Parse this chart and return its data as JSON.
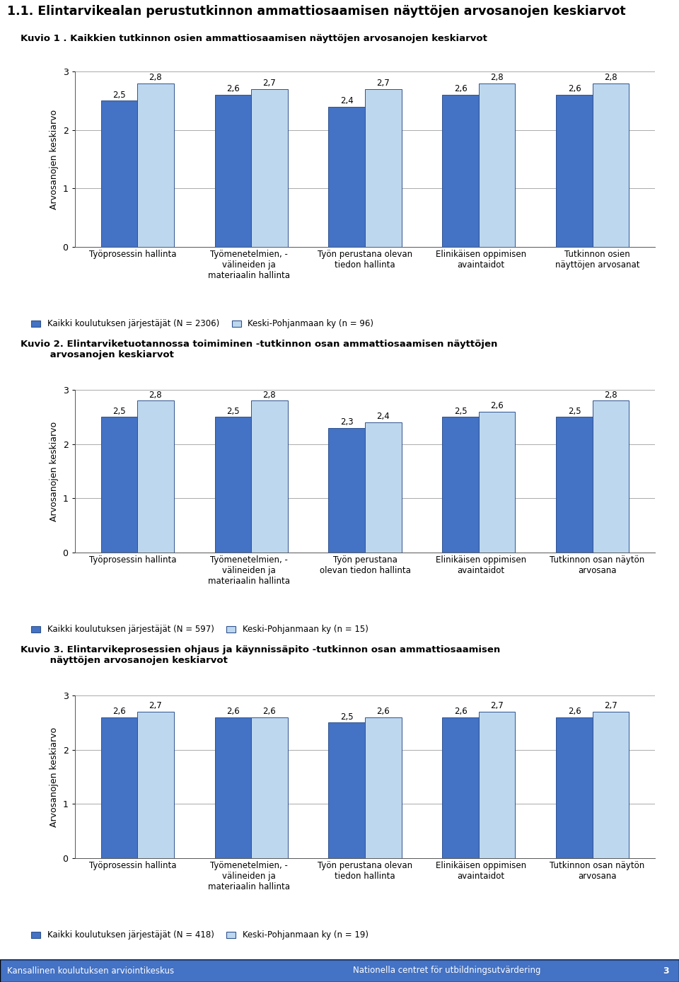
{
  "title": "1.1. Elintarvikealan perustutkinnon ammattiosaamisen näyttöjen arvosanojen keskiarvot",
  "title_fontsize": 12.5,
  "bar_color_dark": "#4472C4",
  "bar_color_light": "#BDD7EE",
  "bar_edge_color": "#2F528F",
  "fig_bg": "#FFFFFF",
  "charts": [
    {
      "title_line1": "Kuvio 1 . Kaikkien tutkinnon osien ammattiosaamisen näyttöjen arvosanojen keskiarvot",
      "title_line2": null,
      "categories": [
        "Työprosessin hallinta",
        "Työmenetelmien, -\nvälineiden ja\nmateriaalin hallinta",
        "Työn perustana olevan\ntiedon hallinta",
        "Elinikäisen oppimisen\navaintaidot",
        "Tutkinnon osien\nnäyttöjen arvosanat"
      ],
      "values_dark": [
        2.5,
        2.6,
        2.4,
        2.6,
        2.6
      ],
      "values_light": [
        2.8,
        2.7,
        2.7,
        2.8,
        2.8
      ],
      "legend_dark": "Kaikki koulutuksen järjestäjät (N = 2306)",
      "legend_light": "Keski-Pohjanmaan ky (n = 96)",
      "ylabel": "Arvosanojen keskiarvo",
      "ylim": [
        0,
        3
      ],
      "yticks": [
        0,
        1,
        2,
        3
      ]
    },
    {
      "title_line1": "Kuvio 2. Elintarviketuotannossa toimiminen -tutkinnon osan ammattiosaamisen näyttöjen",
      "title_line2": "         arvosanojen keskiarvot",
      "categories": [
        "Työprosessin hallinta",
        "Työmenetelmien, -\nvälineiden ja\nmateriaalin hallinta",
        "Työn perustana\nolevan tiedon hallinta",
        "Elinikäisen oppimisen\navaintaidot",
        "Tutkinnon osan näytön\narvosana"
      ],
      "values_dark": [
        2.5,
        2.5,
        2.3,
        2.5,
        2.5
      ],
      "values_light": [
        2.8,
        2.8,
        2.4,
        2.6,
        2.8
      ],
      "legend_dark": "Kaikki koulutuksen järjestäjät (N = 597)",
      "legend_light": "Keski-Pohjanmaan ky (n = 15)",
      "ylabel": "Arvosanojen keskiarvo",
      "ylim": [
        0,
        3
      ],
      "yticks": [
        0,
        1,
        2,
        3
      ]
    },
    {
      "title_line1": "Kuvio 3. Elintarvikeprosessien ohjaus ja käynnissäpito -tutkinnon osan ammattiosaamisen",
      "title_line2": "         näyttöjen arvosanojen keskiarvot",
      "categories": [
        "Työprosessin hallinta",
        "Työmenetelmien, -\nvälineiden ja\nmateriaalin hallinta",
        "Työn perustana olevan\ntiedon hallinta",
        "Elinikäisen oppimisen\navaintaidot",
        "Tutkinnon osan näytön\narvosana"
      ],
      "values_dark": [
        2.6,
        2.6,
        2.5,
        2.6,
        2.6
      ],
      "values_light": [
        2.7,
        2.6,
        2.6,
        2.7,
        2.7
      ],
      "legend_dark": "Kaikki koulutuksen järjestäjät (N = 418)",
      "legend_light": "Keski-Pohjanmaan ky (n = 19)",
      "ylabel": "Arvosanojen keskiarvo",
      "ylim": [
        0,
        3
      ],
      "yticks": [
        0,
        1,
        2,
        3
      ]
    }
  ],
  "footer_left": "Kansallinen koulutuksen arviointikeskus",
  "footer_right": "Nationella centret för utbildningsutvärdering",
  "footer_page": "3",
  "footer_bg": "#4472C4"
}
